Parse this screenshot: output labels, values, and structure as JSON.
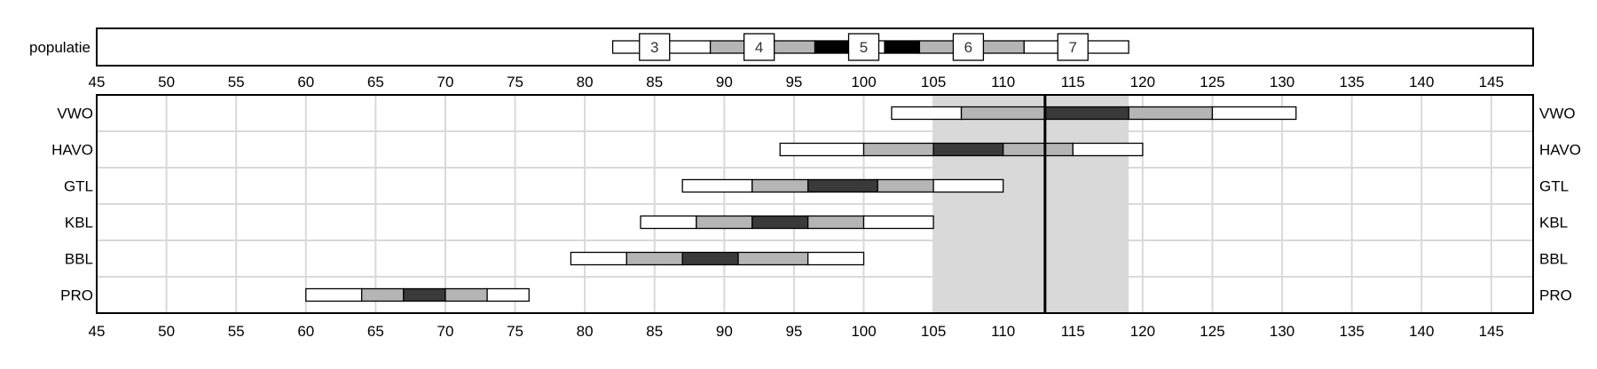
{
  "chart_data": {
    "type": "bar",
    "subtype": "segmented-range",
    "x_ticks": [
      45,
      50,
      55,
      60,
      65,
      70,
      75,
      80,
      85,
      90,
      95,
      100,
      105,
      110,
      115,
      120,
      125,
      130,
      135,
      140,
      145
    ],
    "xlim": [
      45,
      148
    ],
    "grid": true,
    "population": {
      "label": "populatie",
      "bounds": [
        82,
        89,
        96.5,
        99,
        101.5,
        104,
        111.5,
        119
      ],
      "badges": [
        {
          "label": "3",
          "x": 85
        },
        {
          "label": "4",
          "x": 92.5
        },
        {
          "label": "5",
          "x": 100
        },
        {
          "label": "6",
          "x": 107.5
        },
        {
          "label": "7",
          "x": 115
        }
      ]
    },
    "highlight_band": [
      105,
      119
    ],
    "reference_line": 113,
    "categories": [
      "VWO",
      "HAVO",
      "GTL",
      "KBL",
      "BBL",
      "PRO"
    ],
    "series": [
      {
        "category": "VWO",
        "bounds": [
          102,
          107,
          113,
          119,
          125,
          131
        ]
      },
      {
        "category": "HAVO",
        "bounds": [
          94,
          100,
          105,
          110,
          115,
          120
        ]
      },
      {
        "category": "GTL",
        "bounds": [
          87,
          92,
          96,
          101,
          105,
          110
        ]
      },
      {
        "category": "KBL",
        "bounds": [
          84,
          88,
          92,
          96,
          100,
          105
        ]
      },
      {
        "category": "BBL",
        "bounds": [
          79,
          83,
          87,
          91,
          96,
          100
        ]
      },
      {
        "category": "PRO",
        "bounds": [
          60,
          64,
          67,
          70,
          73,
          76
        ]
      }
    ],
    "colors": {
      "outer": "#ffffff",
      "mid": "#b5b5b5",
      "inner": "#3a3a3a",
      "pop_inner": "#000000",
      "band": "#d9d9d9",
      "grid": "#d9d9d9",
      "border": "#000000"
    }
  }
}
